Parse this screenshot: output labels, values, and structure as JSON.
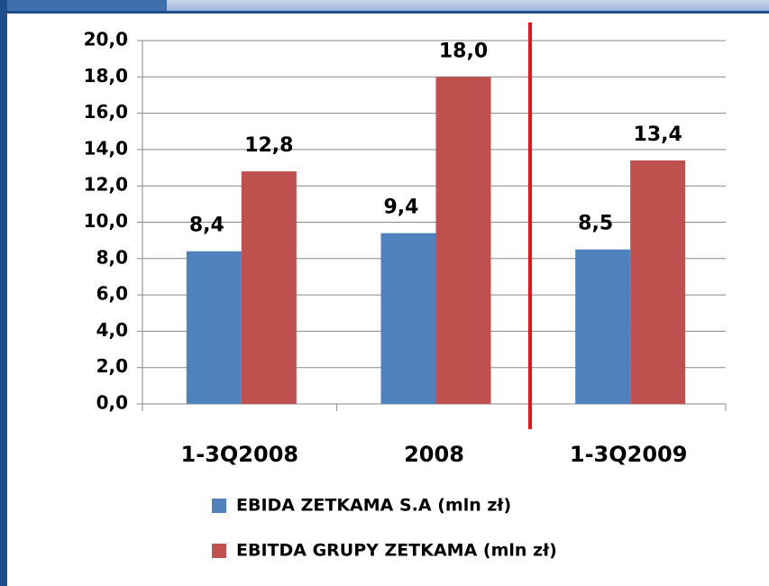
{
  "chart_data": {
    "type": "bar",
    "categories": [
      "1-3Q2008",
      "2008",
      "1-3Q2009"
    ],
    "series": [
      {
        "name": "EBIDA ZETKAMA S.A (mln zł)",
        "color": "#4f81bd",
        "values": [
          8.4,
          9.4,
          8.5
        ],
        "value_labels": [
          "8,4",
          "9,4",
          "8,5"
        ]
      },
      {
        "name": "EBITDA GRUPY ZETKAMA (mln zł)",
        "color": "#c0504d",
        "values": [
          12.8,
          18.0,
          13.4
        ],
        "value_labels": [
          "12,8",
          "18,0",
          "13,4"
        ]
      }
    ],
    "ylim": [
      0,
      20
    ],
    "yticks": [
      {
        "value": 0,
        "label": "0,0"
      },
      {
        "value": 2,
        "label": "2,0"
      },
      {
        "value": 4,
        "label": "4,0"
      },
      {
        "value": 6,
        "label": "6,0"
      },
      {
        "value": 8,
        "label": "8,0"
      },
      {
        "value": 10,
        "label": "10,0"
      },
      {
        "value": 12,
        "label": "12,0"
      },
      {
        "value": 14,
        "label": "14,0"
      },
      {
        "value": 16,
        "label": "16,0"
      },
      {
        "value": 18,
        "label": "18,0"
      },
      {
        "value": 20,
        "label": "20,0"
      }
    ],
    "grid": true,
    "legend": "bottom"
  }
}
